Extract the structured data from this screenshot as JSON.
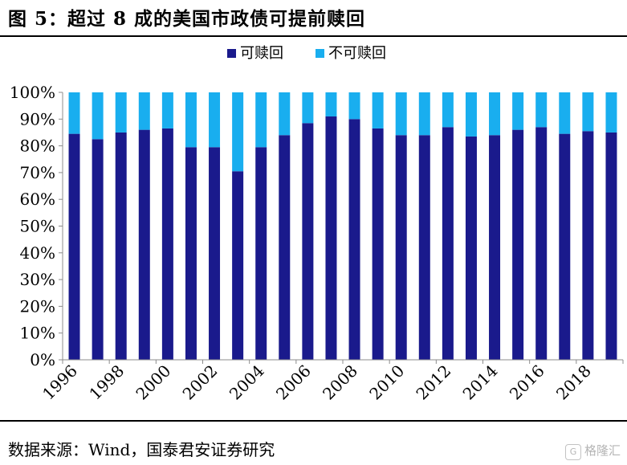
{
  "header": {
    "title": "图 5：超过 8 成的美国市政债可提前赎回"
  },
  "footer": {
    "source": "数据来源：Wind，国泰君安证券研究"
  },
  "watermark": {
    "icon": "gelonghui-logo-icon",
    "text": "格隆汇"
  },
  "colors": {
    "callable": "#1a1a8c",
    "non_callable": "#19aeef",
    "axis": "#8c8c8c"
  },
  "chart_data": {
    "type": "bar",
    "stacked": true,
    "categories": [
      "1996",
      "1997",
      "1998",
      "1999",
      "2000",
      "2001",
      "2002",
      "2003",
      "2004",
      "2005",
      "2006",
      "2007",
      "2008",
      "2009",
      "2010",
      "2011",
      "2012",
      "2013",
      "2014",
      "2015",
      "2016",
      "2017",
      "2018",
      "2019"
    ],
    "x_tick_labels": [
      "1996",
      "1998",
      "2000",
      "2002",
      "2004",
      "2006",
      "2008",
      "2010",
      "2012",
      "2014",
      "2016",
      "2018"
    ],
    "series": [
      {
        "name": "可赎回",
        "values": [
          84.5,
          82.5,
          85,
          86,
          86.5,
          79.5,
          79.5,
          70.5,
          79.5,
          84,
          88.5,
          91,
          90,
          86.5,
          84,
          84,
          87,
          83.5,
          84,
          86,
          87,
          84.5,
          85.5,
          85
        ]
      },
      {
        "name": "不可赎回",
        "values": [
          15.5,
          17.5,
          15,
          14,
          13.5,
          20.5,
          20.5,
          29.5,
          20.5,
          16,
          11.5,
          9,
          10,
          13.5,
          16,
          16,
          13,
          16.5,
          16,
          14,
          13,
          15.5,
          14.5,
          15
        ]
      }
    ],
    "ylim": [
      0,
      100
    ],
    "y_tick_labels": [
      "0%",
      "10%",
      "20%",
      "30%",
      "40%",
      "50%",
      "60%",
      "70%",
      "80%",
      "90%",
      "100%"
    ],
    "legend": "top-center",
    "grid": false
  }
}
